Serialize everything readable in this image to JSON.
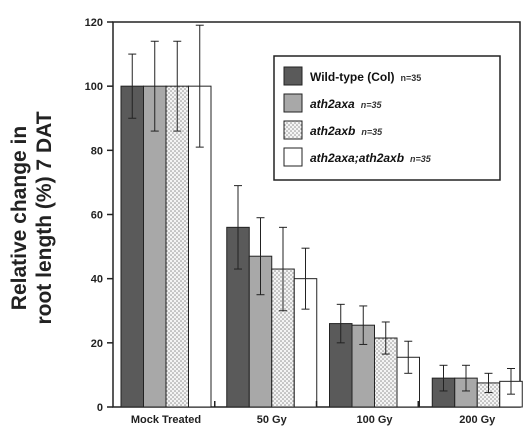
{
  "chart_data": {
    "type": "bar",
    "title": "",
    "xlabel": "",
    "ylabel_lines": [
      "Relative change in",
      "root length (%) 7 DAT"
    ],
    "ylim": [
      0,
      120
    ],
    "yticks": [
      0,
      20,
      40,
      60,
      80,
      100,
      120
    ],
    "categories": [
      "Mock Treated",
      "50 Gy",
      "100 Gy",
      "200 Gy"
    ],
    "series": [
      {
        "name": "Wild-type (Col)",
        "n_label": "n=35",
        "fill": "#5a5a5a",
        "pattern": "solid",
        "italic": false,
        "values": [
          100,
          56,
          26,
          9
        ],
        "errors": [
          10,
          13,
          6,
          4
        ]
      },
      {
        "name": "ath2axa",
        "n_label": "n=35",
        "fill": "#a8a8a8",
        "pattern": "solid",
        "italic": true,
        "values": [
          100,
          47,
          25.5,
          9
        ],
        "errors": [
          14,
          12,
          6,
          4
        ]
      },
      {
        "name": "ath2axb",
        "n_label": "n=35",
        "fill": "#f4f4f4",
        "pattern": "dots",
        "italic": true,
        "values": [
          100,
          43,
          21.5,
          7.5
        ],
        "errors": [
          14,
          13,
          5,
          3
        ]
      },
      {
        "name": "ath2axa;ath2axb",
        "n_label": "n=35",
        "fill": "#ffffff",
        "pattern": "solid",
        "italic": true,
        "values": [
          100,
          40,
          15.5,
          8
        ],
        "errors": [
          19,
          9.5,
          5,
          4
        ]
      }
    ],
    "grid": false,
    "legend_position": "top-right",
    "error_bars": true
  }
}
